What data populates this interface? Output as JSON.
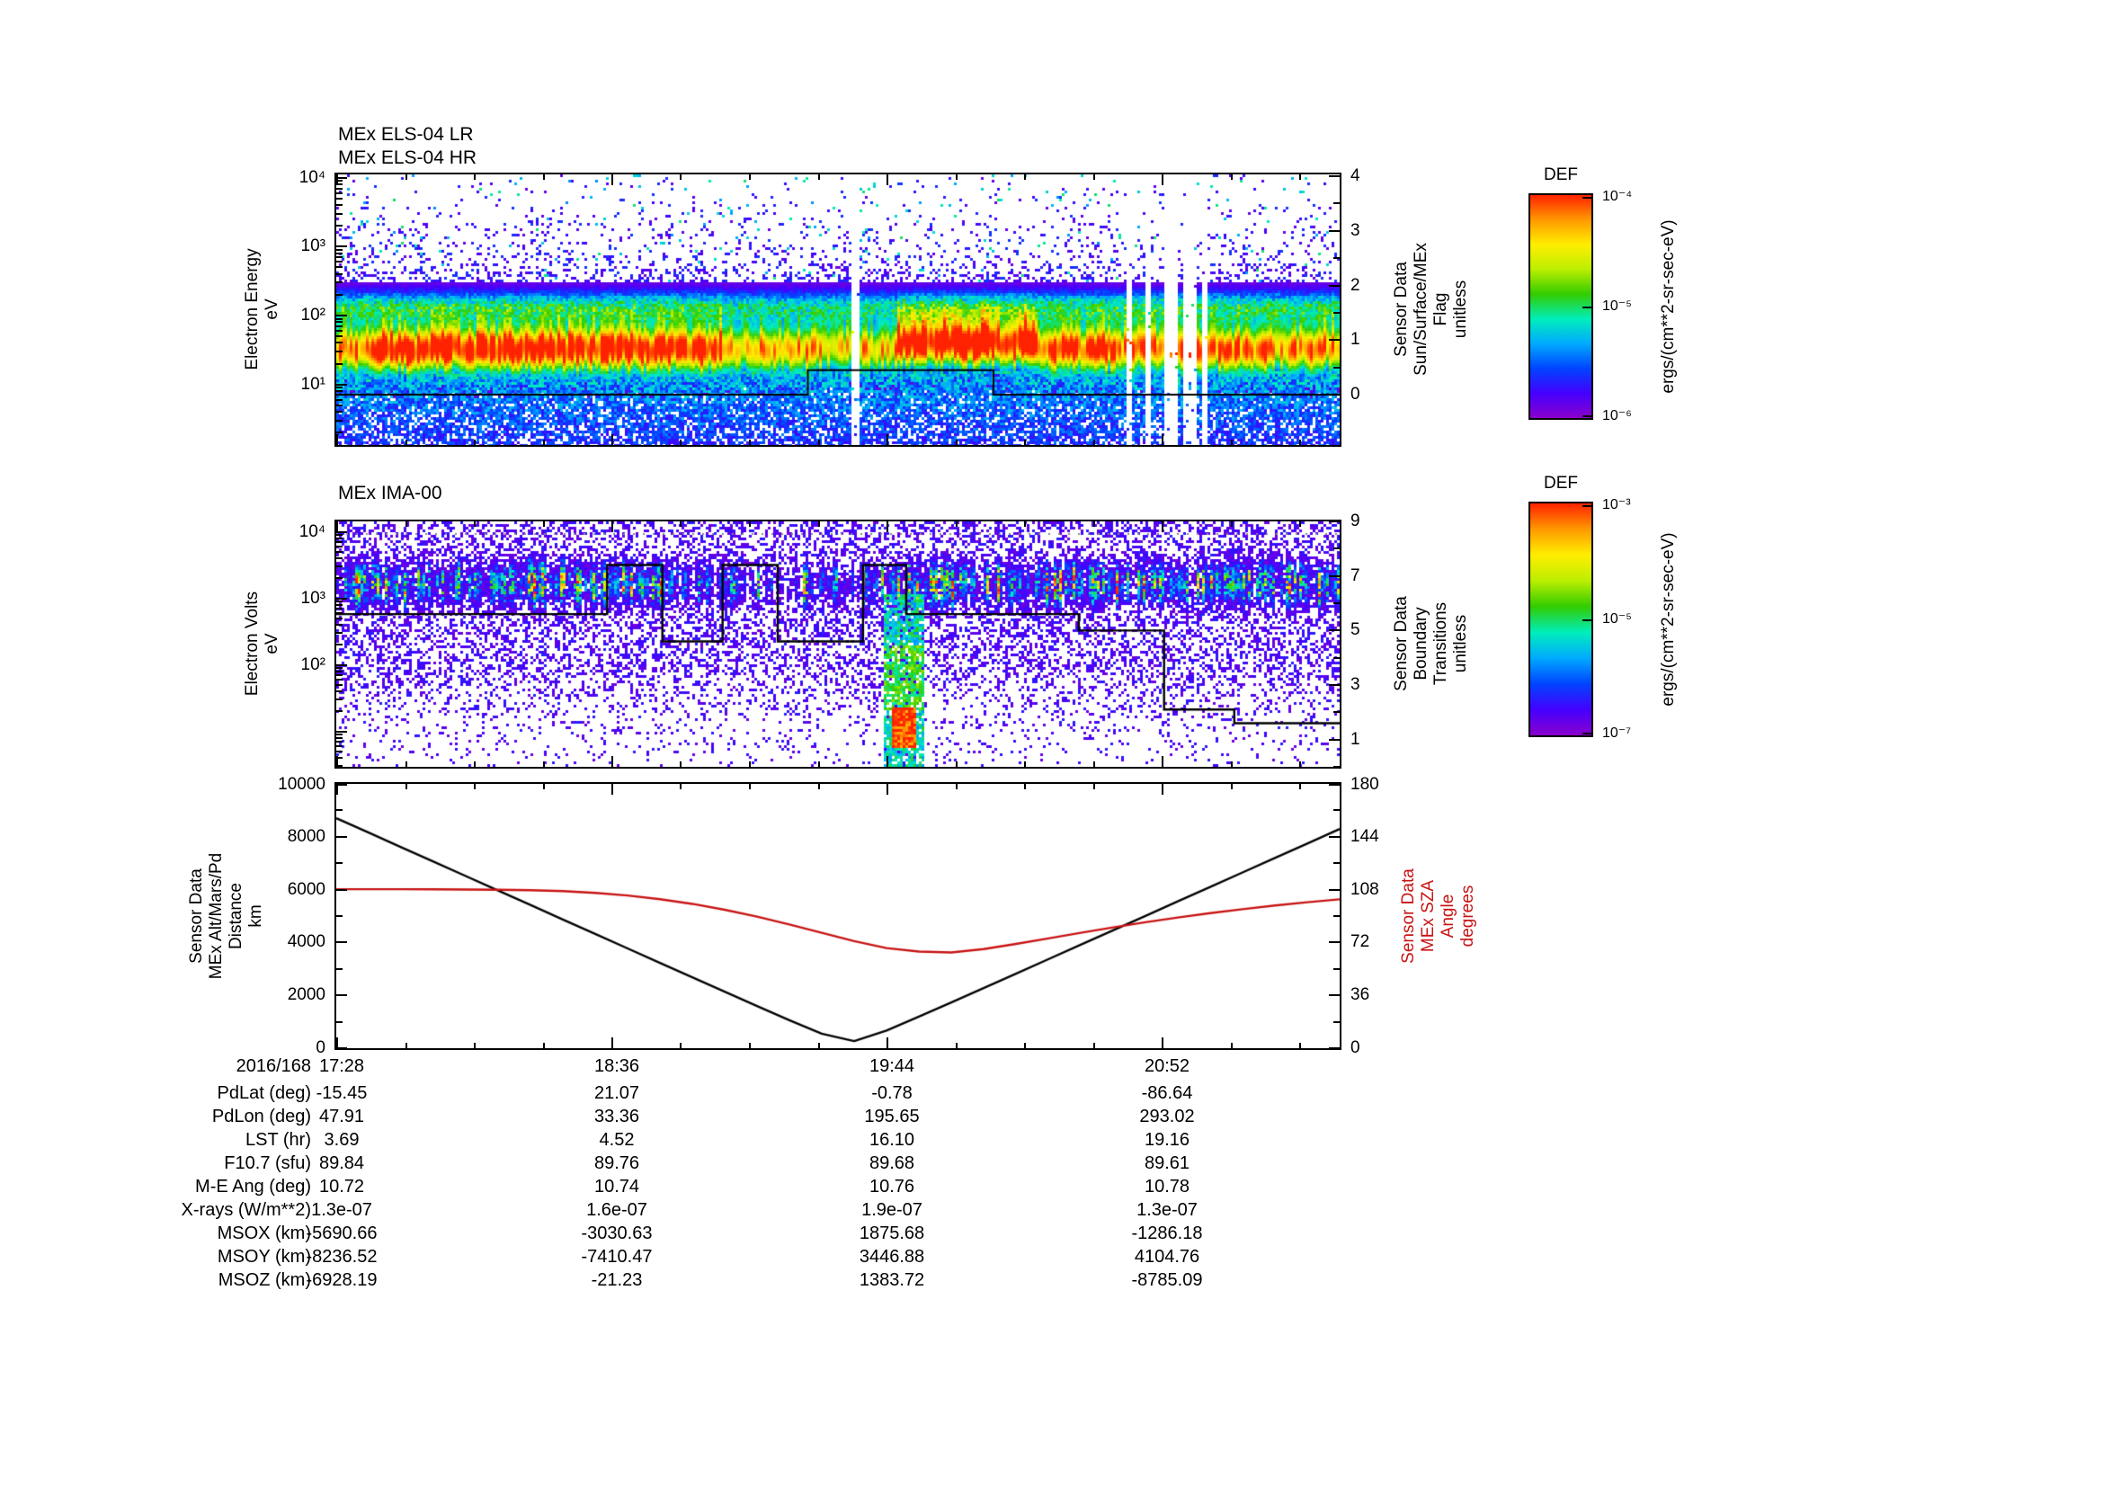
{
  "window": {
    "background": "#ffffff"
  },
  "colors": {
    "axis": "#000000",
    "alt_line": "#000000",
    "sza_line": "#c81414",
    "sza_label": "#c81414",
    "boundary_line": "#000000",
    "colormap": [
      "#8a00cc",
      "#4400ff",
      "#0044ff",
      "#00aaff",
      "#00eebb",
      "#33cc00",
      "#bbee00",
      "#ffee00",
      "#ff9900",
      "#ff2200"
    ]
  },
  "x_axis": {
    "date_label": "2016/168",
    "total_minutes": 248,
    "major_ticks": [
      {
        "minutes": 0,
        "label": "17:28"
      },
      {
        "minutes": 68,
        "label": "18:36"
      },
      {
        "minutes": 136,
        "label": "19:44"
      },
      {
        "minutes": 204,
        "label": "20:52"
      }
    ],
    "minor_tick_minutes": [
      17,
      34,
      51,
      85,
      102,
      119,
      153,
      170,
      187,
      221,
      238
    ]
  },
  "chart_data": [
    {
      "id": "els-spectrogram",
      "type": "heatmap",
      "instrument_titles": [
        "MEx ELS-04 LR",
        "MEx ELS-04 HR"
      ],
      "y_axis": {
        "label_lines": [
          "Electron Energy",
          "eV"
        ],
        "scale": "log",
        "ticks": [
          {
            "log": 4,
            "label": "10⁴"
          },
          {
            "log": 3,
            "label": "10³"
          },
          {
            "log": 2,
            "label": "10²"
          },
          {
            "log": 1,
            "label": "10¹"
          }
        ],
        "log_top": 4.05,
        "log_bottom": 0.12
      },
      "right_axis": {
        "label_lines": [
          "Sensor Data",
          "Sun/Surface/MEx",
          "Flag",
          "unitless"
        ],
        "ticks": [
          4,
          3,
          2,
          1,
          0
        ],
        "minor_ticks": [
          0.5,
          1.5,
          2.5,
          3.5
        ]
      },
      "flag_line_points": [
        [
          0,
          0
        ],
        [
          0.47,
          0
        ],
        [
          0.47,
          0.45
        ],
        [
          0.655,
          0.45
        ],
        [
          0.655,
          0
        ],
        [
          1,
          0
        ]
      ],
      "colorbar": {
        "title": "DEF",
        "tick_labels": [
          "10⁻⁴",
          "10⁻⁵",
          "10⁻⁶"
        ],
        "unit_label": "ergs/(cm**2-sr-sec-eV)"
      },
      "render": {
        "seed": 1337,
        "gaps": [
          [
            0.513,
            0.521
          ],
          [
            0.787,
            0.794
          ],
          [
            0.806,
            0.813
          ],
          [
            0.824,
            0.84
          ],
          [
            0.845,
            0.858
          ],
          [
            0.862,
            0.869
          ]
        ],
        "activity": [
          [
            0,
            0.03,
            0.7,
            0
          ],
          [
            0.03,
            0.385,
            1.0,
            0
          ],
          [
            0.385,
            0.56,
            0.6,
            0
          ],
          [
            0.56,
            0.7,
            1.05,
            0.08
          ],
          [
            0.7,
            0.78,
            0.85,
            0
          ],
          [
            0.78,
            0.93,
            0.78,
            0
          ],
          [
            0.93,
            1.01,
            0.68,
            0
          ]
        ],
        "band_center": 1.52,
        "band_sigma": 0.36,
        "shoulder_center": 2.12,
        "shoulder_sigma": 0.24
      }
    },
    {
      "id": "ima-spectrogram",
      "type": "heatmap",
      "instrument_titles": [
        "MEx IMA-00"
      ],
      "y_axis": {
        "label_lines": [
          "Electron Volts",
          "eV"
        ],
        "scale": "log",
        "ticks": [
          {
            "log": 4,
            "label": "10⁴"
          },
          {
            "log": 3,
            "label": "10³"
          },
          {
            "log": 2,
            "label": "10²"
          }
        ],
        "log_top": 4.16,
        "log_bottom": 0.467
      },
      "right_axis": {
        "label_lines": [
          "Sensor Data",
          "Boundary",
          "Transitions",
          "unitless"
        ],
        "ticks": [
          9,
          7,
          5,
          3,
          1
        ],
        "range": [
          0,
          9
        ]
      },
      "boundary_line_points": [
        [
          0,
          5.6
        ],
        [
          0.27,
          5.6
        ],
        [
          0.27,
          7.4
        ],
        [
          0.325,
          7.4
        ],
        [
          0.325,
          4.6
        ],
        [
          0.385,
          4.6
        ],
        [
          0.385,
          7.4
        ],
        [
          0.44,
          7.4
        ],
        [
          0.44,
          4.6
        ],
        [
          0.525,
          4.6
        ],
        [
          0.525,
          7.4
        ],
        [
          0.568,
          7.4
        ],
        [
          0.568,
          5.6
        ],
        [
          0.74,
          5.6
        ],
        [
          0.74,
          5.0
        ],
        [
          0.825,
          5.0
        ],
        [
          0.825,
          2.1
        ],
        [
          0.895,
          2.1
        ],
        [
          0.895,
          1.6
        ],
        [
          1,
          1.6
        ]
      ],
      "colorbar": {
        "title": "DEF",
        "tick_labels": [
          "10⁻³",
          "10⁻⁵",
          "10⁻⁷"
        ],
        "unit_label": "ergs/(cm**2-sr-sec-eV)"
      },
      "render": {
        "seed": 2024,
        "band_center": 3.22,
        "band_sigma": 0.27,
        "quiet_interval": [
          0.34,
          0.52
        ],
        "plume": {
          "t0": 0.545,
          "t1": 0.585,
          "core_t0": 0.553,
          "core_t1": 0.578,
          "core_log_lo": 0.75,
          "core_log_hi": 1.35
        }
      }
    },
    {
      "id": "ephemeris-lines",
      "type": "line",
      "x_minutes_step": 8,
      "left_axis": {
        "label_lines": [
          "Sensor Data",
          "MEx Alt/Mars/Pd",
          "Distance",
          "km"
        ],
        "ticks": [
          0,
          2000,
          4000,
          6000,
          8000,
          10000
        ],
        "minor_ticks": [
          1000,
          3000,
          5000,
          7000,
          9000
        ],
        "range": [
          0,
          10000
        ]
      },
      "right_axis": {
        "label_lines": [
          "Sensor Data",
          "MEx SZA",
          "Angle",
          "degrees"
        ],
        "ticks": [
          0,
          36,
          72,
          108,
          144,
          180
        ],
        "minor_ticks": [
          18,
          54,
          90,
          126,
          162
        ],
        "range": [
          0,
          180
        ]
      },
      "series": [
        {
          "name": "MEx Alt/Mars/Pd Distance (km)",
          "axis": "left",
          "color": "#000000",
          "values": [
            8703,
            8156,
            7608,
            7060,
            6513,
            5965,
            5418,
            4870,
            4323,
            3776,
            3230,
            2684,
            2139,
            1597,
            1060,
            546,
            269,
            669,
            1193,
            1732,
            2275,
            2820,
            3367,
            3913,
            4460,
            5007,
            5555,
            6102,
            6650,
            7197,
            7745,
            8293
          ]
        },
        {
          "name": "MEx SZA Angle (degrees)",
          "axis": "right",
          "color": "#c81414",
          "values": [
            108.3,
            108.3,
            108.3,
            108.2,
            108.1,
            107.9,
            107.6,
            107.0,
            105.8,
            104.0,
            101.5,
            98.3,
            94.3,
            89.6,
            84.3,
            78.6,
            72.9,
            68.2,
            65.8,
            65.2,
            67.5,
            71.0,
            74.8,
            78.6,
            82.3,
            85.8,
            89.0,
            92.0,
            94.7,
            97.2,
            99.4,
            101.4
          ]
        }
      ]
    }
  ],
  "ephemeris_table": {
    "date_label": "2016/168",
    "time_labels": [
      "17:28",
      "18:36",
      "19:44",
      "20:52"
    ],
    "rows": [
      {
        "label": "PdLat (deg)",
        "values": [
          "-15.45",
          "21.07",
          "-0.78",
          "-86.64"
        ]
      },
      {
        "label": "PdLon (deg)",
        "values": [
          "47.91",
          "33.36",
          "195.65",
          "293.02"
        ]
      },
      {
        "label": "LST (hr)",
        "values": [
          "3.69",
          "4.52",
          "16.10",
          "19.16"
        ]
      },
      {
        "label": "F10.7 (sfu)",
        "values": [
          "89.84",
          "89.76",
          "89.68",
          "89.61"
        ]
      },
      {
        "label": "M-E Ang (deg)",
        "values": [
          "10.72",
          "10.74",
          "10.76",
          "10.78"
        ]
      },
      {
        "label": "X-rays (W/m**2)",
        "values": [
          "1.3e-07",
          "1.6e-07",
          "1.9e-07",
          "1.3e-07"
        ]
      },
      {
        "label": "MSOX (km)",
        "values": [
          "-5690.66",
          "-3030.63",
          "1875.68",
          "-1286.18"
        ]
      },
      {
        "label": "MSOY (km)",
        "values": [
          "-8236.52",
          "-7410.47",
          "3446.88",
          "4104.76"
        ]
      },
      {
        "label": "MSOZ (km)",
        "values": [
          "-6928.19",
          "-21.23",
          "1383.72",
          "-8785.09"
        ]
      }
    ]
  }
}
